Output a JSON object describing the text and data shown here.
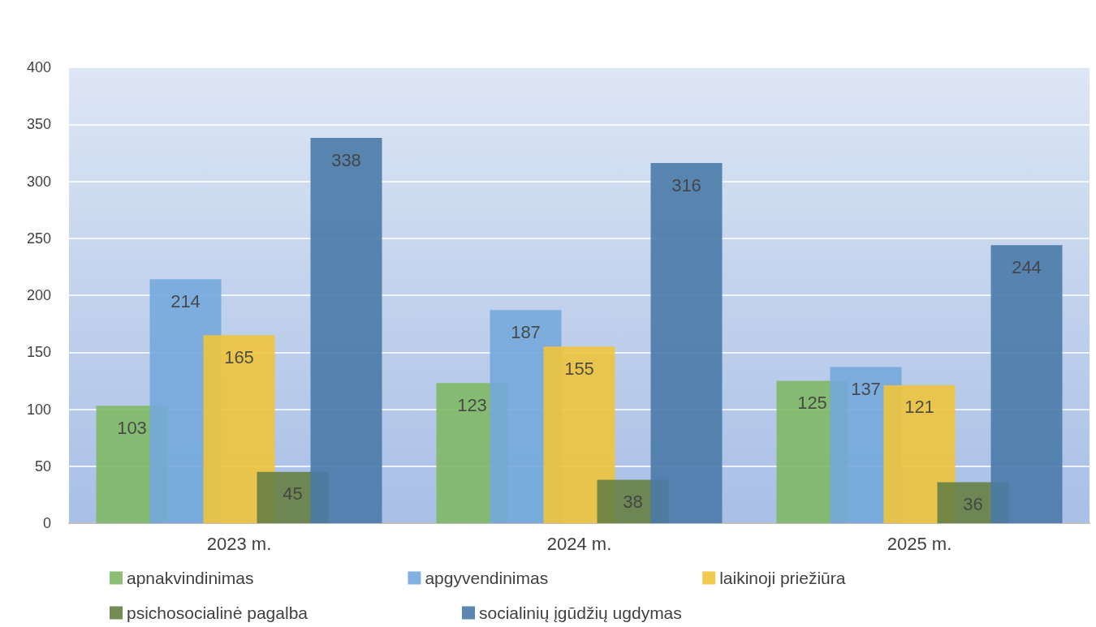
{
  "chart_data": {
    "type": "bar",
    "categories": [
      "2023 m.",
      "2024 m.",
      "2025 m."
    ],
    "series": [
      {
        "name": "apnakvindinimas",
        "color": "#80b866",
        "values": [
          103,
          123,
          125
        ]
      },
      {
        "name": "apgyvendinimas",
        "color": "#74a9dc",
        "values": [
          214,
          187,
          137
        ]
      },
      {
        "name": "laikinoji priežiūra",
        "color": "#f0c43c",
        "values": [
          165,
          155,
          121
        ]
      },
      {
        "name": "psichosocialinė pagalba",
        "color": "#677f43",
        "values": [
          45,
          38,
          36
        ]
      },
      {
        "name": "socialinių įgūdžių ugdymas",
        "color": "#4a7aa8",
        "values": [
          338,
          316,
          244
        ]
      }
    ],
    "ylim": [
      0,
      400
    ],
    "yticks": [
      0,
      50,
      100,
      150,
      200,
      250,
      300,
      350,
      400
    ],
    "grid": "y",
    "legend": "bottom",
    "data_labels": true
  }
}
